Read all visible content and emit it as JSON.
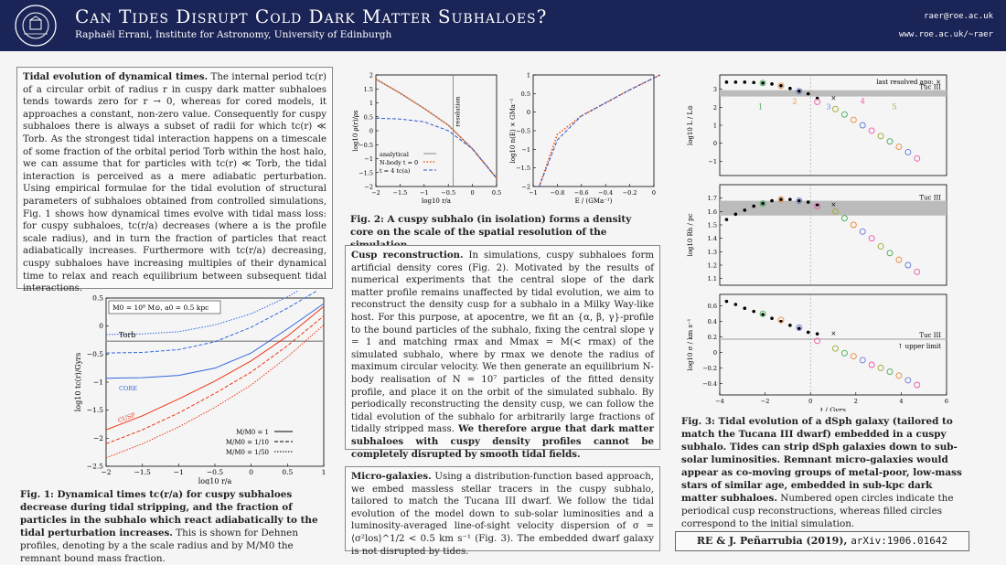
{
  "header": {
    "title": "Can Tides Disrupt Cold Dark Matter Subhaloes?",
    "authors": "Raphaël Errani, Institute for Astronomy, University of Edinburgh",
    "email": "raer@roe.ac.uk",
    "url": "www.roe.ac.uk/~raer",
    "logo_text": "THE UNIVERSITY OF EDINBURGH"
  },
  "box1": {
    "heading": "Tidal evolution of dynamical times.",
    "text": "The internal period tc(r) of a circular orbit of radius r in cuspy dark matter subhaloes tends towards zero for r → 0, whereas for cored models, it approaches a constant, non-zero value. Consequently for cuspy subhaloes there is always a subset of radii for which tc(r) ≪ Torb. As the strongest tidal interaction happens on a timescale of some fraction of the orbital period Torb within the host halo, we can assume that for particles with tc(r) ≪ Torb, the tidal interaction is perceived as a mere adiabatic perturbation. Using empirical formulae for the tidal evolution of structural parameters of subhaloes obtained from controlled simulations, Fig. 1 shows how dynamical times evolve with tidal mass loss: for cuspy subhaloes, tc(r/a) decreases (where a is the profile scale radius), and in turn the fraction of particles that react adiabatically increases. Furthermore with tc(r/a) decreasing, cuspy subhaloes have increasing multiples of their dynamical time to relax and reach equilibrium between subsequent tidal interactions."
  },
  "fig1": {
    "caption_bold": "Fig. 1: Dynamical times tc(r/a) for cuspy subhaloes decrease during tidal stripping, and the fraction of particles in the subhalo which react adiabatically to the tidal perturbation increases.",
    "caption_rest": "This is shown for Dehnen profiles, denoting by a the scale radius and by M/M0 the remnant bound mass fraction."
  },
  "fig2": {
    "caption": "Fig. 2: A cuspy subhalo (in isolation) forms a density core on the scale of the spatial resolution of the simulation."
  },
  "box2": {
    "heading": "Cusp reconstruction.",
    "text": "In simulations, cuspy subhaloes form artificial density cores (Fig. 2). Motivated by the results of numerical experiments that the central slope of the dark matter profile remains unaffected by tidal evolution, we aim to reconstruct the density cusp for a subhalo in a Milky Way-like host. For this purpose, at apocentre, we fit an {α, β, γ}-profile to the bound particles of the subhalo, fixing the central slope γ = 1 and matching rmax and Mmax = M(< rmax) of the simulated subhalo, where by rmax we denote the radius of maximum circular velocity. We then generate an equilibrium N-body realisation of N = 10⁷ particles of the fitted density profile, and place it on the orbit of the simulated subhalo. By periodically reconstructing the density cusp, we can follow the tidal evolution of the subhalo for arbitrarily large fractions of tidally stripped mass.",
    "bold": "We therefore argue that dark matter subhaloes with cuspy density profiles cannot be completely disrupted by smooth tidal fields."
  },
  "box3": {
    "heading": "Micro-galaxies.",
    "text": "Using a distribution-function based approach, we embed massless stellar tracers in the cuspy subhalo, tailored to match the Tucana III dwarf. We follow the tidal evolution of the model down to sub-solar luminosities and a luminosity-averaged line-of-sight velocity dispersion of σ = ⟨σ²los⟩^1/2 < 0.5 km s⁻¹ (Fig. 3). The embedded dwarf galaxy is not disrupted by tides."
  },
  "fig3": {
    "caption_bold": "Fig. 3: Tidal evolution of a dSph galaxy (tailored to match the Tucana III dwarf) embedded in a cuspy subhalo. Tides can strip dSph galaxies down to sub-solar luminosities. Remnant micro-galaxies would appear as co-moving groups of metal-poor, low-mass stars of similar age, embedded in sub-kpc dark matter subhaloes.",
    "caption_rest": "Numbered open circles indicate the periodical cusp reconstructions, whereas filled circles correspond to the initial simulation."
  },
  "reference": {
    "text": "RE & J. Peñarrubia (2019),",
    "arxiv": "arXiv:1906.01642"
  },
  "chart_data": [
    {
      "type": "line",
      "id": "fig1",
      "xlabel": "log10 r/a",
      "ylabel": "log10 tc(r)/Gyrs",
      "xlim": [
        -2,
        1
      ],
      "ylim": [
        -2.5,
        0.5
      ],
      "xticks": [
        "−2",
        "−1.5",
        "−1",
        "−0.5",
        "0",
        "0.5",
        "1"
      ],
      "yticks": [
        "−2.5",
        "−2",
        "−1.5",
        "−1",
        "−0.5",
        "0",
        "0.5"
      ],
      "label_box": "M0 = 10⁸ M⊙, a0 = 0.5 kpc",
      "annotations": [
        "Torb",
        "CORE",
        "CUSP"
      ],
      "legend": [
        "M/M0 = 1",
        "M/M0 = 1/10",
        "M/M0 = 1/50"
      ],
      "torb": -0.27,
      "x": [
        -2,
        -1.5,
        -1,
        -0.5,
        0,
        0.5,
        1
      ],
      "series": [
        {
          "name": "core M/M0=1",
          "values": [
            -0.93,
            -0.92,
            -0.88,
            -0.75,
            -0.48,
            -0.05,
            0.4
          ]
        },
        {
          "name": "core M/M0=1/10",
          "values": [
            -0.48,
            -0.47,
            -0.42,
            -0.28,
            -0.02,
            0.32,
            0.7
          ]
        },
        {
          "name": "core M/M0=1/50",
          "values": [
            -0.15,
            -0.14,
            -0.1,
            0.02,
            0.22,
            0.52,
            0.9
          ]
        },
        {
          "name": "cusp M/M0=1",
          "values": [
            -1.85,
            -1.6,
            -1.3,
            -0.98,
            -0.62,
            -0.18,
            0.35
          ]
        },
        {
          "name": "cusp M/M0=1/10",
          "values": [
            -2.1,
            -1.85,
            -1.55,
            -1.2,
            -0.82,
            -0.35,
            0.18
          ]
        },
        {
          "name": "cusp M/M0=1/50",
          "values": [
            -2.35,
            -2.1,
            -1.8,
            -1.45,
            -1.05,
            -0.55,
            0.02
          ]
        }
      ]
    },
    {
      "type": "line",
      "id": "fig2a",
      "xlabel": "log10 r/a",
      "ylabel": "log10 ρ(r)/ρs",
      "xlim": [
        -2,
        0.5
      ],
      "ylim": [
        -2,
        2
      ],
      "xticks": [
        "−2",
        "−1.5",
        "−1",
        "−0.5",
        "0",
        "0.5"
      ],
      "yticks": [
        "−2",
        "−1.5",
        "−1",
        "−0.5",
        "0",
        "0.5",
        "1",
        "1.5",
        "2"
      ],
      "resolution_label": "resolution",
      "resolution_x": -0.4,
      "legend": [
        "analytical",
        "N-body t = 0",
        "t = 4 tc(a)"
      ],
      "x": [
        -2,
        -1.5,
        -1,
        -0.5,
        0,
        0.5
      ],
      "series": [
        {
          "name": "analytical",
          "values": [
            1.85,
            1.35,
            0.8,
            0.2,
            -0.65,
            -1.7
          ]
        },
        {
          "name": "N-body t = 0",
          "values": [
            1.85,
            1.35,
            0.8,
            0.2,
            -0.65,
            -1.7
          ]
        },
        {
          "name": "t = 4 tc(a)",
          "values": [
            0.45,
            0.42,
            0.32,
            0.0,
            -0.65,
            -1.7
          ]
        }
      ]
    },
    {
      "type": "line",
      "id": "fig2b",
      "xlabel": "E / (GMa⁻¹)",
      "ylabel": "log10 n(E) × GMa⁻¹",
      "xlim": [
        -1,
        0
      ],
      "ylim": [
        -2,
        1
      ],
      "xticks": [
        "−1",
        "−0.8",
        "−0.6",
        "−0.4",
        "−0.2",
        "0"
      ],
      "yticks": [
        "−2",
        "−1.5",
        "−1",
        "−0.5",
        "0",
        "0.5",
        "1"
      ],
      "x": [
        -0.95,
        -0.8,
        -0.6,
        -0.4,
        -0.2,
        0.05
      ],
      "series": [
        {
          "name": "N-body t = 0",
          "values": [
            -2,
            -0.6,
            -0.1,
            0.25,
            0.6,
            1.0
          ]
        },
        {
          "name": "t = 4 tc(a)",
          "values": [
            -2,
            -0.75,
            -0.1,
            0.25,
            0.6,
            1.0
          ]
        }
      ]
    },
    {
      "type": "scatter",
      "id": "fig3",
      "xlabel": "t / Gyrs",
      "xlim": [
        -4,
        6
      ],
      "xticks": [
        "−4",
        "−2",
        "0",
        "2",
        "4",
        "6"
      ],
      "last_resolved": "last resolved apo: ×",
      "panels": [
        {
          "ylabel": "log10 L / L⊙",
          "ylim": [
            -1.8,
            3.8
          ],
          "yticks": [
            "−1",
            "0",
            "1",
            "2",
            "3"
          ],
          "band": [
            2.6,
            2.95
          ],
          "band_label": "Tuc III",
          "filled_t": [
            -3.7,
            -3.3,
            -2.9,
            -2.5,
            -2.1,
            -1.7,
            -1.3,
            -0.9,
            -0.5,
            -0.1,
            0.3
          ],
          "filled_v": [
            3.4,
            3.4,
            3.4,
            3.38,
            3.35,
            3.3,
            3.2,
            3.05,
            2.9,
            2.75,
            2.5
          ],
          "open_t": [
            -2.1,
            -1.3,
            -0.5,
            0.3,
            1.1,
            1.5,
            1.9,
            2.3,
            2.7,
            3.1,
            3.5,
            3.9,
            4.3,
            4.7
          ],
          "open_v": [
            3.35,
            3.2,
            2.9,
            2.3,
            1.9,
            1.6,
            1.3,
            1.0,
            0.7,
            0.4,
            0.1,
            -0.2,
            -0.5,
            -0.85
          ],
          "markers": [
            "1",
            "2",
            "3",
            "4",
            "5"
          ]
        },
        {
          "ylabel": "log10 Rh / pc",
          "ylim": [
            1.05,
            1.8
          ],
          "yticks": [
            "1.1",
            "1.2",
            "1.3",
            "1.4",
            "1.5",
            "1.6",
            "1.7"
          ],
          "band": [
            1.57,
            1.68
          ],
          "band_label": "Tuc III",
          "filled_t": [
            -3.7,
            -3.3,
            -2.9,
            -2.5,
            -2.1,
            -1.7,
            -1.3,
            -0.9,
            -0.5,
            -0.1,
            0.3
          ],
          "filled_v": [
            1.54,
            1.58,
            1.61,
            1.64,
            1.66,
            1.68,
            1.69,
            1.69,
            1.68,
            1.67,
            1.65
          ],
          "open_t": [
            -2.1,
            -1.3,
            -0.5,
            0.3,
            1.1,
            1.5,
            1.9,
            2.3,
            2.7,
            3.1,
            3.5,
            3.9,
            4.3,
            4.7
          ],
          "open_v": [
            1.66,
            1.69,
            1.68,
            1.64,
            1.6,
            1.55,
            1.5,
            1.45,
            1.4,
            1.34,
            1.29,
            1.24,
            1.2,
            1.15
          ]
        },
        {
          "ylabel": "log10 σ / km s⁻¹",
          "ylim": [
            -0.55,
            0.75
          ],
          "yticks": [
            "−0.4",
            "−0.2",
            "0",
            "0.2",
            "0.4",
            "0.6"
          ],
          "band": [
            0.17,
            0.18
          ],
          "band_label": "Tuc III",
          "limit_label": "↑ upper limit",
          "filled_t": [
            -3.7,
            -3.3,
            -2.9,
            -2.5,
            -2.1,
            -1.7,
            -1.3,
            -0.9,
            -0.5,
            -0.1,
            0.3
          ],
          "filled_v": [
            0.66,
            0.62,
            0.57,
            0.53,
            0.49,
            0.44,
            0.4,
            0.35,
            0.31,
            0.26,
            0.24
          ],
          "open_t": [
            -2.1,
            -1.3,
            -0.5,
            0.3,
            1.1,
            1.5,
            1.9,
            2.3,
            2.7,
            3.1,
            3.5,
            3.9,
            4.3,
            4.7
          ],
          "open_v": [
            0.5,
            0.42,
            0.32,
            0.15,
            0.05,
            -0.01,
            -0.05,
            -0.1,
            -0.16,
            -0.2,
            -0.25,
            -0.3,
            -0.36,
            -0.42
          ]
        }
      ]
    }
  ]
}
